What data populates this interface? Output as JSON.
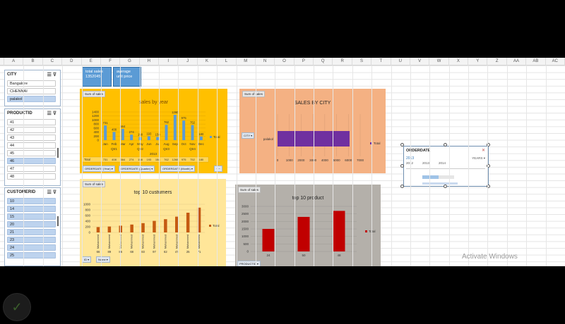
{
  "columns": [
    "A",
    "B",
    "C",
    "D",
    "E",
    "F",
    "G",
    "H",
    "I",
    "J",
    "K",
    "L",
    "M",
    "N",
    "O",
    "P",
    "Q",
    "R",
    "S",
    "T",
    "U",
    "V",
    "W",
    "X",
    "Y",
    "Z",
    "AA",
    "AB",
    "AC"
  ],
  "cards": {
    "total_sales_label": "total sales",
    "total_sales_value": "1352045",
    "avg_price_label": "average",
    "avg_price_label2": "unit price"
  },
  "slicers": {
    "city": {
      "title": "CITY",
      "items": [
        "Bangalore",
        "CHENNAI",
        "palakol"
      ],
      "selected": [
        2
      ]
    },
    "productid": {
      "title": "PRODUCTID",
      "items": [
        "41",
        "42",
        "43",
        "44",
        "45",
        "46",
        "47",
        "48"
      ],
      "selected": [
        5
      ]
    },
    "customerid": {
      "title": "CUSTOMERID",
      "items": [
        "10",
        "14",
        "15",
        "20",
        "21",
        "23",
        "24",
        "25"
      ],
      "selected": [
        0,
        1,
        2,
        3,
        4,
        5,
        6,
        7
      ]
    }
  },
  "chart_tag": "Sum of sales",
  "charts": {
    "by_year": {
      "title": "sales by year",
      "legend": "Total",
      "months": [
        "Jan",
        "Feb",
        "Mar",
        "Apr",
        "May",
        "Jun",
        "Jul",
        "Aug",
        "Sep",
        "Oct",
        "Nov",
        "Dec"
      ],
      "values": [
        731,
        408,
        564,
        274,
        158,
        193,
        158,
        762,
        1260,
        975,
        752,
        180
      ],
      "quarters": [
        "Qtr1",
        "Qtr2",
        "Qtr3",
        "Qtr4"
      ],
      "year": "2013",
      "yticks": [
        "0",
        "200",
        "400",
        "600",
        "800",
        "1000",
        "1200",
        "1400"
      ],
      "table_label": "Total",
      "field_buttons": [
        "ORDERDATE (Year)",
        "ORDERDATE (Quarter)",
        "ORDERDATE (Month)"
      ]
    },
    "by_city": {
      "title": "SALES BY CITY",
      "category": "palakol",
      "value": 6100,
      "xticks": [
        "0",
        "1000",
        "2000",
        "3000",
        "4000",
        "5000",
        "6000",
        "7000"
      ],
      "legend": "Total",
      "field_button": "CITY"
    },
    "customers": {
      "title": "top 10 custumers",
      "categories": [
        "66",
        "89",
        "86",
        "68",
        "83",
        "97",
        "62",
        "47",
        "25",
        "71"
      ],
      "category_prefix": "Muhammed",
      "values": [
        190,
        210,
        240,
        280,
        330,
        410,
        470,
        560,
        700,
        880
      ],
      "yticks": [
        "0",
        "200",
        "400",
        "600",
        "800",
        "1000"
      ],
      "legend": "Total",
      "field_buttons": [
        "ID",
        "Name"
      ]
    },
    "products": {
      "title": "top 10 product",
      "categories": [
        "24",
        "50",
        "48"
      ],
      "values": [
        1500,
        2300,
        2700
      ],
      "yticks": [
        "0",
        "500",
        "1000",
        "1500",
        "2000",
        "2500",
        "3000"
      ],
      "legend": "Total",
      "field_button": "PRODUCTID"
    }
  },
  "timeline": {
    "title": "ORDERDATE",
    "selected_year": "2013",
    "level": "YEARS",
    "years": [
      "2012",
      "2013",
      "2014"
    ]
  },
  "watermark": "Activate Windows",
  "colors": {
    "orange_panel": "#ffc000",
    "peach_panel": "#f4b183",
    "yellow_panel": "#ffe699",
    "gray_panel": "#b4b0aa",
    "bar_blue": "#5b9bd5",
    "bar_purple": "#7030a0",
    "bar_orange": "#c55a11",
    "bar_red": "#c00000"
  }
}
